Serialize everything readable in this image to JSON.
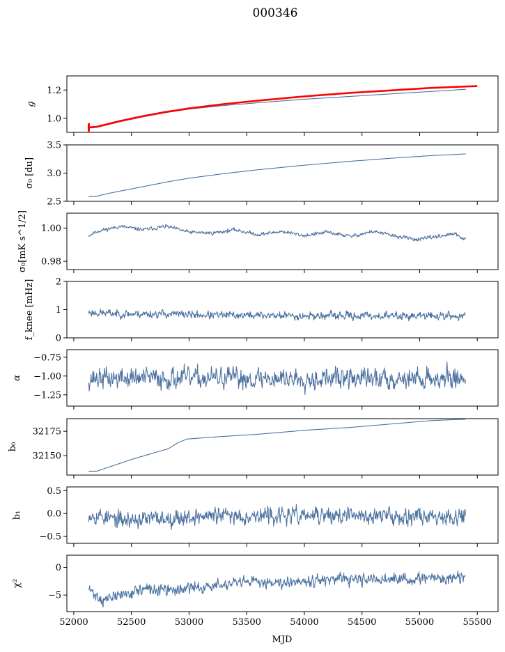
{
  "chart_data": {
    "type": "line",
    "title": "000346",
    "xlabel": "MJD",
    "xlim": [
      51940,
      55680
    ],
    "xticks": [
      52000,
      52500,
      53000,
      53500,
      54000,
      54500,
      55000,
      55500
    ],
    "xtick_labels": [
      "52000",
      "52500",
      "53000",
      "53500",
      "54000",
      "54500",
      "55000",
      "55500"
    ],
    "x_start": 52130,
    "x_end": 55400,
    "line_color": "#4c72a0",
    "fit_color": "#ff0000",
    "panels": [
      {
        "id": "g",
        "ylabel": "g",
        "ylim": [
          0.9,
          1.3
        ],
        "yticks": [
          1.0,
          1.2
        ],
        "ytick_labels": [
          "1.0",
          "1.2"
        ],
        "series": [
          {
            "name": "g",
            "kind": "smooth",
            "color": "#4c72a0",
            "x": [
              52130,
              52200,
              52400,
              52600,
              52800,
              53000,
              53300,
              53600,
              54000,
              54400,
              54800,
              55100,
              55400
            ],
            "y": [
              0.93,
              0.935,
              0.975,
              1.01,
              1.04,
              1.065,
              1.09,
              1.11,
              1.135,
              1.155,
              1.175,
              1.19,
              1.205
            ]
          },
          {
            "name": "g_fit",
            "kind": "smooth",
            "color": "#ff0000",
            "width": 2.6,
            "x": [
              52130,
              52200,
              52400,
              52600,
              52800,
              53000,
              53300,
              53600,
              54000,
              54400,
              54800,
              55100,
              55400,
              55500
            ],
            "y": [
              0.935,
              0.94,
              0.98,
              1.015,
              1.045,
              1.07,
              1.1,
              1.125,
              1.155,
              1.18,
              1.2,
              1.215,
              1.225,
              1.228
            ]
          }
        ]
      },
      {
        "id": "sigma0_du",
        "ylabel": "σ₀ [du]",
        "ylim": [
          2.5,
          3.5
        ],
        "yticks": [
          2.5,
          3.0,
          3.5
        ],
        "ytick_labels": [
          "2.5",
          "3.0",
          "3.5"
        ],
        "series": [
          {
            "name": "sigma0_du",
            "kind": "smooth",
            "color": "#4c72a0",
            "x": [
              52130,
              52200,
              52300,
              52500,
              52800,
              53000,
              53300,
              53600,
              54000,
              54400,
              54800,
              55100,
              55400
            ],
            "y": [
              2.58,
              2.59,
              2.64,
              2.72,
              2.84,
              2.91,
              2.99,
              3.06,
              3.14,
              3.21,
              3.27,
              3.31,
              3.34
            ]
          }
        ]
      },
      {
        "id": "sigma0_mK",
        "ylabel": "σ₀[mK s^1/2]",
        "ylim": [
          0.975,
          1.009
        ],
        "yticks": [
          0.98,
          1.0
        ],
        "ytick_labels": [
          "0.98",
          "1.00"
        ],
        "series": [
          {
            "name": "sigma0_mK",
            "kind": "noisy",
            "color": "#4c72a0",
            "noise": 0.0008,
            "seed": 11,
            "x": [
              52130,
              52200,
              52400,
              52600,
              52800,
              53000,
              53200,
              53400,
              53600,
              53800,
              54000,
              54200,
              54400,
              54600,
              54800,
              55000,
              55100,
              55300,
              55400
            ],
            "y": [
              0.9955,
              0.998,
              1.001,
              0.999,
              1.001,
              0.9975,
              0.997,
              0.999,
              0.996,
              0.998,
              0.9955,
              0.9975,
              0.995,
              0.998,
              0.995,
              0.993,
              0.9945,
              0.9965,
              0.993
            ]
          }
        ]
      },
      {
        "id": "fknee",
        "ylabel": "f_knee [mHz]",
        "ylim": [
          0,
          2
        ],
        "yticks": [
          0,
          1,
          2
        ],
        "ytick_labels": [
          "0",
          "1",
          "2"
        ],
        "series": [
          {
            "name": "fknee",
            "kind": "noisy",
            "color": "#4c72a0",
            "noise": 0.1,
            "seed": 23,
            "x": [
              52130,
              52400,
              52800,
              53200,
              53600,
              54000,
              54400,
              54800,
              55200,
              55400
            ],
            "y": [
              0.9,
              0.85,
              0.85,
              0.8,
              0.8,
              0.78,
              0.78,
              0.78,
              0.78,
              0.75
            ]
          }
        ]
      },
      {
        "id": "alpha",
        "ylabel": "α",
        "ylim": [
          -1.4,
          -0.65
        ],
        "yticks": [
          -1.25,
          -1.0,
          -0.75
        ],
        "ytick_labels": [
          "−1.25",
          "−1.00",
          "−0.75"
        ],
        "series": [
          {
            "name": "alpha",
            "kind": "noisy",
            "color": "#4c72a0",
            "noise": 0.1,
            "seed": 37,
            "x": [
              52130,
              55400
            ],
            "y": [
              -1.03,
              -1.03
            ]
          }
        ]
      },
      {
        "id": "b0",
        "ylabel": "b₀",
        "ylim": [
          32130,
          32188
        ],
        "yticks": [
          32150,
          32175
        ],
        "ytick_labels": [
          "32150",
          "32175"
        ],
        "series": [
          {
            "name": "b0",
            "kind": "smooth",
            "color": "#4c72a0",
            "x": [
              52130,
              52200,
              52300,
              52500,
              52700,
              52820,
              52900,
              52980,
              53200,
              53600,
              54000,
              54400,
              54800,
              55100,
              55400
            ],
            "y": [
              32134,
              32134,
              32138,
              32146,
              32153,
              32157,
              32163,
              32167,
              32169,
              32172,
              32176,
              32179,
              32183,
              32186,
              32187.5
            ]
          }
        ]
      },
      {
        "id": "b1",
        "ylabel": "b₁",
        "ylim": [
          -0.65,
          0.58
        ],
        "yticks": [
          -0.5,
          0.0,
          0.5
        ],
        "ytick_labels": [
          "−0.5",
          "0.0",
          "0.5"
        ],
        "series": [
          {
            "name": "b1",
            "kind": "noisy",
            "color": "#4c72a0",
            "noise": 0.13,
            "seed": 53,
            "x": [
              52130,
              52400,
              52800,
              53200,
              53600,
              54000,
              54400,
              54800,
              55200,
              55400
            ],
            "y": [
              0.0,
              -0.15,
              -0.1,
              -0.05,
              -0.05,
              -0.05,
              -0.05,
              -0.05,
              -0.05,
              -0.05
            ]
          }
        ]
      },
      {
        "id": "chi2",
        "ylabel": "χ²",
        "ylim": [
          -8,
          2.2
        ],
        "yticks": [
          -5,
          0
        ],
        "ytick_labels": [
          "−5",
          "0"
        ],
        "series": [
          {
            "name": "chi2",
            "kind": "noisy",
            "color": "#4c72a0",
            "noise": 0.75,
            "seed": 71,
            "x": [
              52130,
              52250,
              52400,
              52600,
              52800,
              53000,
              53200,
              53400,
              53600,
              53800,
              54000,
              54400,
              54800,
              55200,
              55400
            ],
            "y": [
              -4.0,
              -6.0,
              -5.0,
              -4.0,
              -4.2,
              -3.8,
              -3.4,
              -3.0,
              -2.6,
              -2.6,
              -2.3,
              -2.3,
              -2.2,
              -2.0,
              -1.8
            ]
          }
        ]
      }
    ]
  }
}
